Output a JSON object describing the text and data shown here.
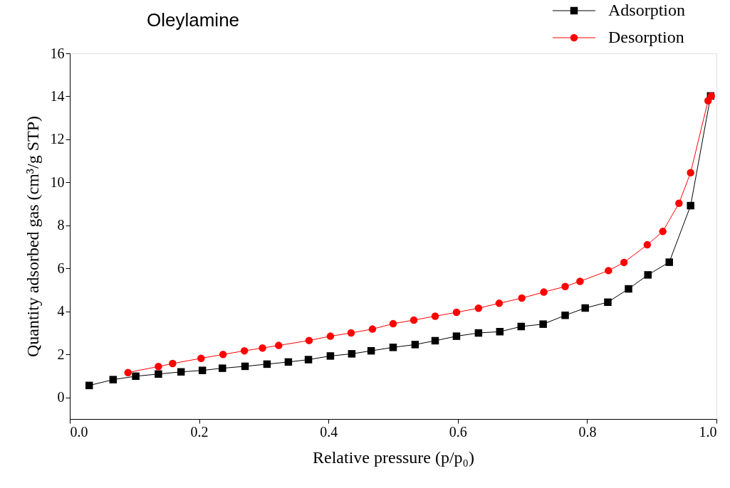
{
  "chart_data": {
    "type": "line",
    "title": "Oleylamine",
    "xlabel": "Relative pressure (p/p₀)",
    "ylabel": "Quantity adsorbed gas (cm³/g STP)",
    "xlim": [
      0,
      1
    ],
    "xticks": [
      {
        "value": 0,
        "label": "0.0"
      },
      0.2,
      0.4,
      0.6,
      0.8,
      {
        "value": 1,
        "label": "1.0"
      }
    ],
    "ylim": [
      -1,
      16
    ],
    "yticks": [
      0,
      2,
      4,
      6,
      8,
      10,
      12,
      14,
      16
    ],
    "grid": false,
    "legend": "top right",
    "line_style": "solid",
    "series": [
      {
        "name": "Adsorption",
        "color": "#000000",
        "marker": "square",
        "x": [
          0.03,
          0.067,
          0.102,
          0.137,
          0.172,
          0.205,
          0.236,
          0.271,
          0.305,
          0.338,
          0.369,
          0.403,
          0.436,
          0.466,
          0.5,
          0.534,
          0.565,
          0.598,
          0.632,
          0.665,
          0.698,
          0.732,
          0.766,
          0.797,
          0.832,
          0.864,
          0.894,
          0.927,
          0.96,
          0.991
        ],
        "values": [
          0.56,
          0.83,
          0.99,
          1.09,
          1.19,
          1.26,
          1.36,
          1.45,
          1.55,
          1.65,
          1.76,
          1.93,
          2.03,
          2.17,
          2.33,
          2.46,
          2.64,
          2.85,
          3.0,
          3.06,
          3.3,
          3.41,
          3.82,
          4.16,
          4.43,
          5.05,
          5.7,
          6.29,
          8.92,
          14.02
        ]
      },
      {
        "name": "Desorption",
        "color": "#ff0000",
        "marker": "circle",
        "x": [
          0.09,
          0.137,
          0.159,
          0.203,
          0.237,
          0.27,
          0.298,
          0.323,
          0.37,
          0.403,
          0.435,
          0.468,
          0.5,
          0.532,
          0.565,
          0.598,
          0.632,
          0.664,
          0.699,
          0.733,
          0.766,
          0.789,
          0.833,
          0.857,
          0.893,
          0.917,
          0.942,
          0.96,
          0.987,
          0.992
        ],
        "values": [
          1.16,
          1.44,
          1.58,
          1.82,
          2.0,
          2.17,
          2.3,
          2.42,
          2.65,
          2.85,
          3.0,
          3.18,
          3.43,
          3.6,
          3.78,
          3.96,
          4.15,
          4.38,
          4.62,
          4.9,
          5.16,
          5.4,
          5.9,
          6.28,
          7.1,
          7.72,
          9.03,
          10.45,
          13.8,
          14.02
        ]
      }
    ]
  }
}
